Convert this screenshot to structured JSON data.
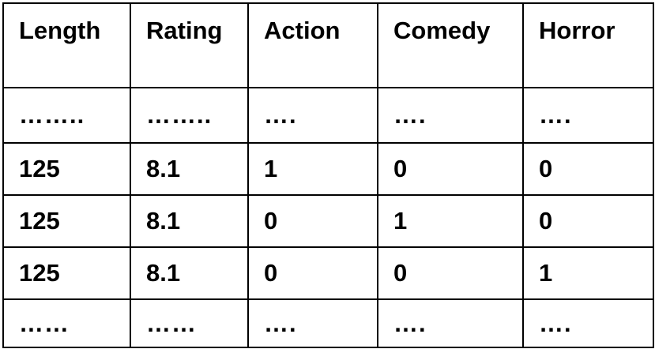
{
  "table": {
    "headers": [
      "Length",
      "Rating",
      "Action",
      "Comedy",
      "Horror"
    ],
    "rows": [
      [
        "……..",
        "……..",
        "….",
        "….",
        "…."
      ],
      [
        "125",
        "8.1",
        "1",
        "0",
        "0"
      ],
      [
        "125",
        "8.1",
        "0",
        "1",
        "0"
      ],
      [
        "125",
        "8.1",
        "0",
        "0",
        "1"
      ],
      [
        "……",
        "……",
        "….",
        "….",
        "…."
      ]
    ]
  }
}
